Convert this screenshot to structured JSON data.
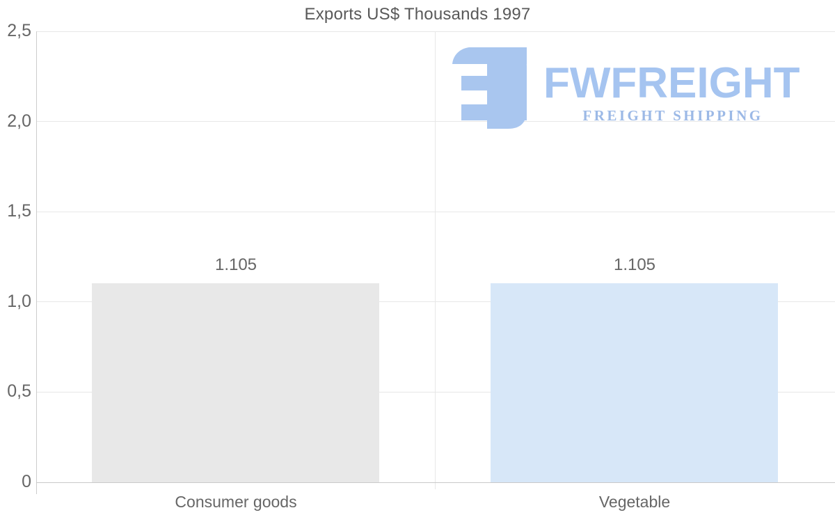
{
  "title": "Exports US$ Thousands 1997",
  "logo": {
    "name": "FWFREIGHT",
    "tagline": "FREIGHT SHIPPING",
    "icon_color": "#a9c6ef",
    "wordmark_color": "#a5c4f0",
    "tagline_color": "#9cb9e6"
  },
  "chart_data": {
    "type": "bar",
    "title": "Exports US$ Thousands 1997",
    "categories": [
      "Consumer goods",
      "Vegetable"
    ],
    "values": [
      1.105,
      1.105
    ],
    "value_labels": [
      "1.105",
      "1.105"
    ],
    "bar_colors": [
      "#e8e8e8",
      "#d7e7f8"
    ],
    "ylim": [
      0,
      2.5
    ],
    "yticks": [
      0,
      0.5,
      1.0,
      1.5,
      2.0,
      2.5
    ],
    "ytick_labels": [
      "0",
      "0,5",
      "1,0",
      "1,5",
      "2,0",
      "2,5"
    ],
    "xlabel": "",
    "ylabel": "",
    "grid": "horizontal-and-category-boundaries",
    "legend": "none",
    "colors": {
      "grid": "#e7e7e7",
      "baseline": "#c9c9c9",
      "axis_line": "#cccccc",
      "tick_text": "#666666",
      "title_text": "#595959"
    }
  }
}
